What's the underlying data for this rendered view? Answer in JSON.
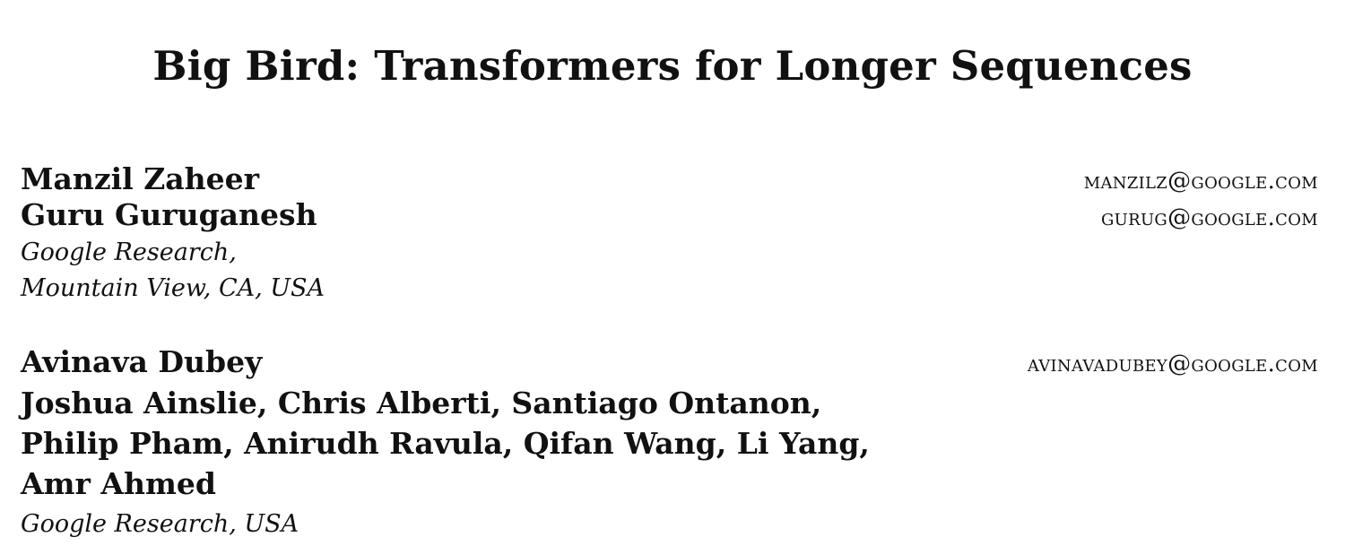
{
  "paper": {
    "title": "Big Bird: Transformers for Longer Sequences",
    "author_groups": [
      {
        "authors": [
          {
            "name": "Manzil Zaheer",
            "email": "MANZILZ@GOOGLE.COM"
          },
          {
            "name": "Guru Guruganesh",
            "email": "GURUG@GOOGLE.COM"
          }
        ],
        "affiliation_lines": [
          "Google Research,",
          "Mountain View, CA, USA"
        ]
      },
      {
        "authors": [
          {
            "name": "Avinava Dubey",
            "email": "AVINAVADUBEY@GOOGLE.COM"
          }
        ],
        "author_lines": [
          "Joshua Ainslie, Chris Alberti, Santiago Ontanon,",
          "Philip Pham, Anirudh Ravula, Qifan Wang, Li Yang,",
          "Amr Ahmed"
        ],
        "affiliation_lines": [
          "Google Research, USA"
        ]
      }
    ]
  }
}
